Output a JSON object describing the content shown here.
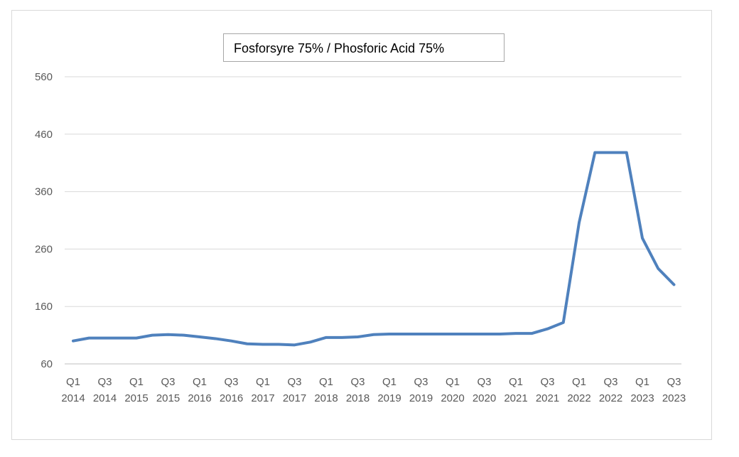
{
  "chart_data": {
    "type": "line",
    "title": "Fosforsyre 75% / Phosforic Acid 75%",
    "xlabel": "",
    "ylabel": "",
    "ylim": [
      60,
      560
    ],
    "yticks": [
      60,
      160,
      260,
      360,
      460,
      560
    ],
    "grid": true,
    "legend": "none",
    "x": [
      "Q1 2014",
      "Q2 2014",
      "Q3 2014",
      "Q4 2014",
      "Q1 2015",
      "Q2 2015",
      "Q3 2015",
      "Q4 2015",
      "Q1 2016",
      "Q2 2016",
      "Q3 2016",
      "Q4 2016",
      "Q1 2017",
      "Q2 2017",
      "Q3 2017",
      "Q4 2017",
      "Q1 2018",
      "Q2 2018",
      "Q3 2018",
      "Q4 2018",
      "Q1 2019",
      "Q2 2019",
      "Q3 2019",
      "Q4 2019",
      "Q1 2020",
      "Q2 2020",
      "Q3 2020",
      "Q4 2020",
      "Q1 2021",
      "Q2 2021",
      "Q3 2021",
      "Q4 2021",
      "Q1 2022",
      "Q2 2022",
      "Q3 2022",
      "Q4 2022",
      "Q1 2023",
      "Q2 2023",
      "Q3 2023"
    ],
    "xtick_labels": [
      {
        "q": "Q1",
        "y": "2014"
      },
      {
        "q": "Q3",
        "y": "2014"
      },
      {
        "q": "Q1",
        "y": "2015"
      },
      {
        "q": "Q3",
        "y": "2015"
      },
      {
        "q": "Q1",
        "y": "2016"
      },
      {
        "q": "Q3",
        "y": "2016"
      },
      {
        "q": "Q1",
        "y": "2017"
      },
      {
        "q": "Q3",
        "y": "2017"
      },
      {
        "q": "Q1",
        "y": "2018"
      },
      {
        "q": "Q3",
        "y": "2018"
      },
      {
        "q": "Q1",
        "y": "2019"
      },
      {
        "q": "Q3",
        "y": "2019"
      },
      {
        "q": "Q1",
        "y": "2020"
      },
      {
        "q": "Q3",
        "y": "2020"
      },
      {
        "q": "Q1",
        "y": "2021"
      },
      {
        "q": "Q3",
        "y": "2021"
      },
      {
        "q": "Q1",
        "y": "2022"
      },
      {
        "q": "Q3",
        "y": "2022"
      },
      {
        "q": "Q1",
        "y": "2023"
      },
      {
        "q": "Q3",
        "y": "2023"
      }
    ],
    "series": [
      {
        "color": "#4f81bd",
        "values": [
          100,
          105,
          105,
          105,
          105,
          110,
          111,
          110,
          107,
          104,
          100,
          95,
          94,
          94,
          93,
          98,
          106,
          106,
          107,
          111,
          112,
          112,
          112,
          112,
          112,
          112,
          112,
          112,
          113,
          113,
          121,
          132,
          306,
          428,
          428,
          428,
          279,
          226,
          198
        ]
      }
    ]
  }
}
